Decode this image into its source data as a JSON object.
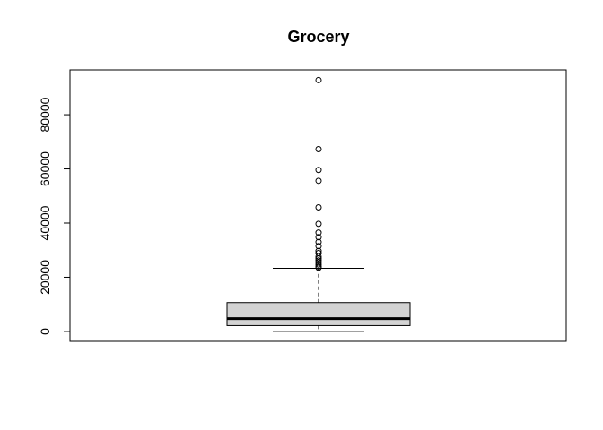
{
  "chart_data": {
    "type": "box",
    "title": "Grocery",
    "xlabel": "",
    "ylabel": "",
    "ylim": [
      -3660,
      96560
    ],
    "yticks": [
      0,
      20000,
      40000,
      60000,
      80000
    ],
    "ytick_labels": [
      "0",
      "20000",
      "40000",
      "60000",
      "80000"
    ],
    "box": {
      "min": 3,
      "q1": 2150,
      "median": 4750,
      "q3": 10650,
      "whisker_high": 23300,
      "fill": "#d3d3d3"
    },
    "outliers": [
      92780,
      67300,
      59600,
      55600,
      45800,
      39700,
      36500,
      34800,
      33000,
      31500,
      29700,
      28900,
      27600,
      26900,
      26200,
      25500,
      24700,
      24000,
      23500
    ],
    "grid": false,
    "legend": "none"
  }
}
